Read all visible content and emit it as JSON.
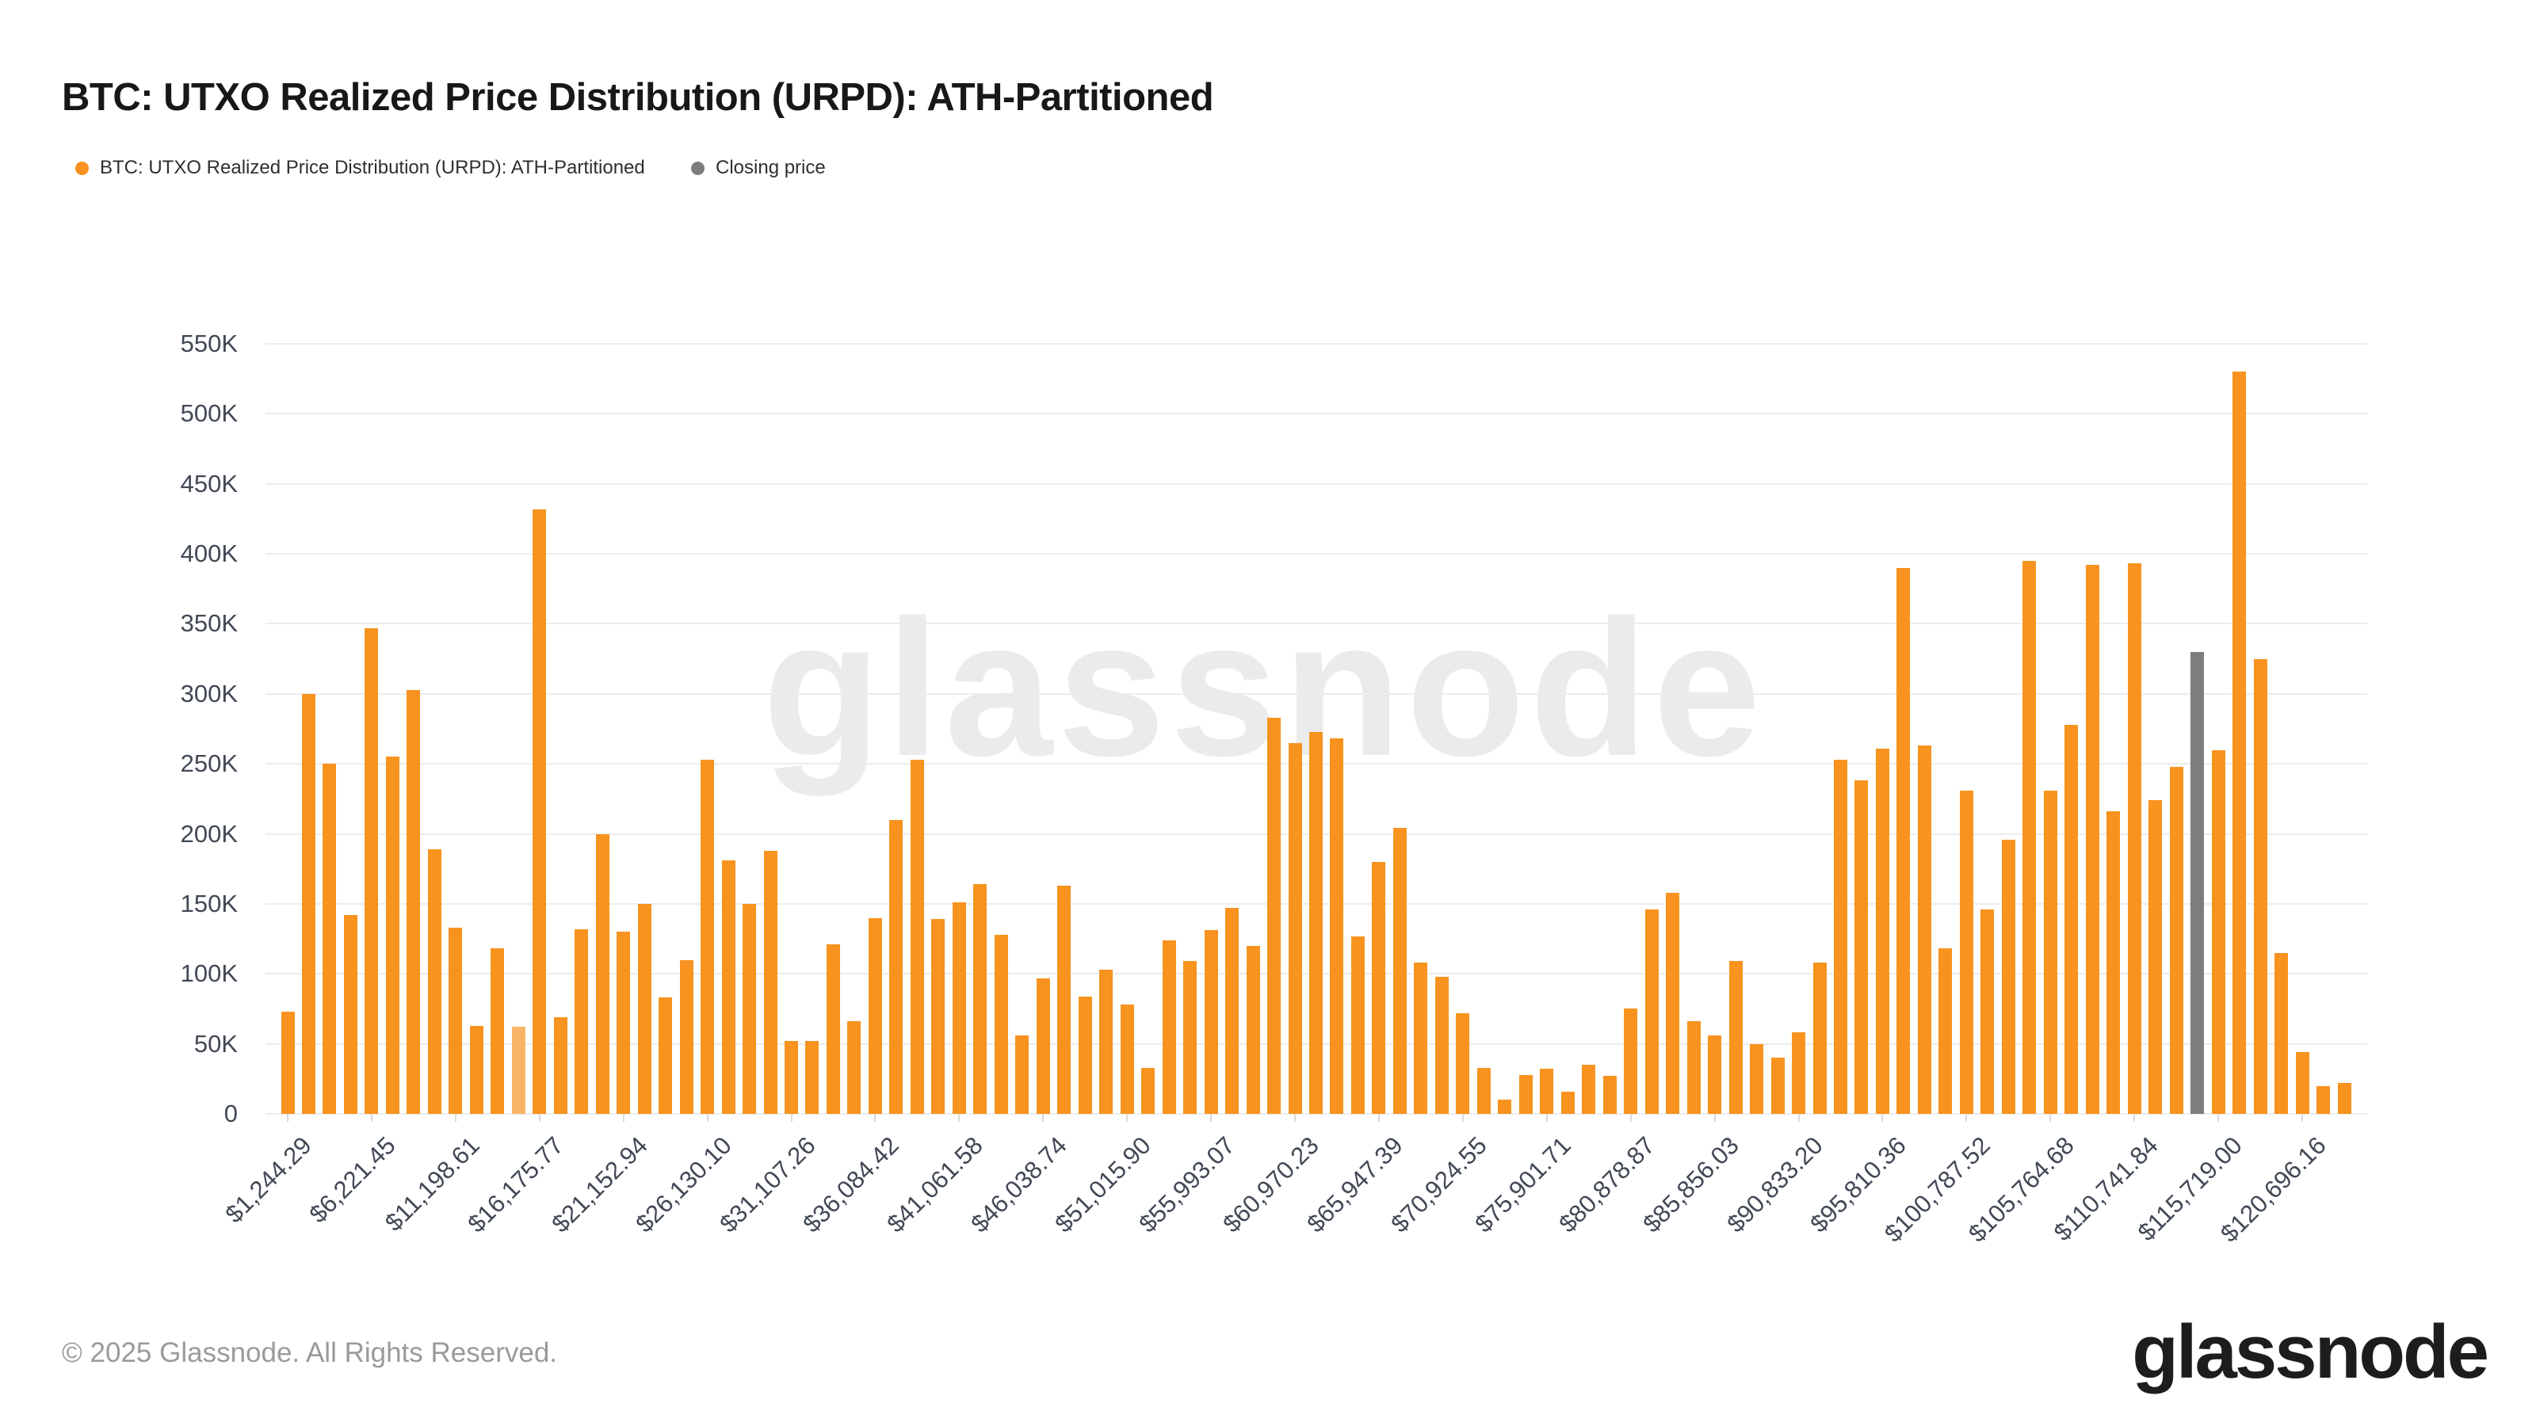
{
  "header": {
    "title": "BTC: UTXO Realized Price Distribution (URPD): ATH-Partitioned"
  },
  "legend": {
    "items": [
      {
        "label": "BTC: UTXO Realized Price Distribution (URPD): ATH-Partitioned",
        "color": "#F7931E"
      },
      {
        "label": "Closing price",
        "color": "#7D7D7D"
      }
    ]
  },
  "watermark": "glassnode",
  "footer": {
    "copyright": "© 2025 Glassnode. All Rights Reserved.",
    "logo_text": "glassnode"
  },
  "chart_data": {
    "type": "bar",
    "title": "BTC: UTXO Realized Price Distribution (URPD): ATH-Partitioned",
    "xlabel": "",
    "ylabel": "",
    "ylim": [
      0,
      550000
    ],
    "grid": "horizontal",
    "legend_position": "top-left",
    "y_tick_labels": [
      "0",
      "50K",
      "100K",
      "150K",
      "200K",
      "250K",
      "300K",
      "350K",
      "400K",
      "450K",
      "500K",
      "550K"
    ],
    "y_tick_values": [
      0,
      50000,
      100000,
      150000,
      200000,
      250000,
      300000,
      350000,
      400000,
      450000,
      500000,
      550000
    ],
    "x_tick_labels": [
      "$1,244.29",
      "$6,221.45",
      "$11,198.61",
      "$16,175.77",
      "$21,152.94",
      "$26,130.10",
      "$31,107.26",
      "$36,084.42",
      "$41,061.58",
      "$46,038.74",
      "$51,015.90",
      "$55,993.07",
      "$60,970.23",
      "$65,947.39",
      "$70,924.55",
      "$75,901.71",
      "$80,878.87",
      "$85,856.03",
      "$90,833.20",
      "$95,810.36",
      "$100,787.52",
      "$105,764.68",
      "$110,741.84",
      "$115,719.00",
      "$120,696.16"
    ],
    "x_label_every_n_bars": 4,
    "x_label_first_bar_index": 0,
    "series": [
      {
        "name": "BTC: UTXO Realized Price Distribution (URPD): ATH-Partitioned",
        "color": "#F7931E",
        "values": [
          73000,
          300000,
          250000,
          142000,
          347000,
          255000,
          303000,
          189000,
          133000,
          63000,
          118000,
          62000,
          432000,
          69000,
          132000,
          200000,
          130000,
          150000,
          83000,
          110000,
          253000,
          181000,
          150000,
          188000,
          52000,
          52000,
          121000,
          66000,
          140000,
          210000,
          253000,
          139000,
          151000,
          164000,
          128000,
          56000,
          97000,
          163000,
          84000,
          103000,
          78000,
          33000,
          124000,
          109000,
          131000,
          147000,
          120000,
          283000,
          265000,
          273000,
          268000,
          127000,
          180000,
          204000,
          108000,
          98000,
          72000,
          33000,
          10000,
          28000,
          32000,
          16000,
          35000,
          27000,
          75000,
          146000,
          158000,
          66000,
          56000,
          109000,
          50000,
          40000,
          58000,
          108000,
          253000,
          238000,
          261000,
          390000,
          263000,
          118000,
          231000,
          146000,
          196000,
          395000,
          231000,
          278000,
          392000,
          216000,
          393000,
          224000,
          248000,
          330000,
          260000,
          530000,
          325000,
          115000,
          44000,
          20000,
          22000
        ]
      }
    ],
    "special_bars": {
      "closing_price_index": 91,
      "closing_price_color": "#7D7D7D",
      "light_index": 11,
      "light_color": "#F9B567"
    }
  }
}
